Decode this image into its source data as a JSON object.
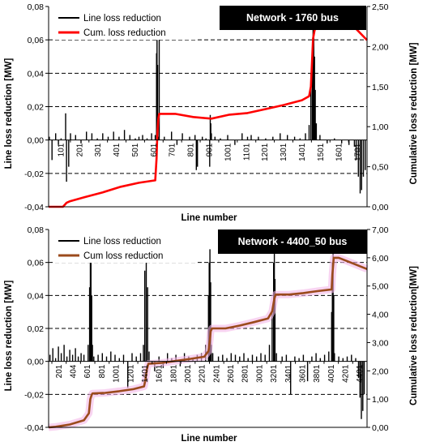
{
  "chart_data": [
    {
      "type": "line",
      "annotation": "Network - 1760 bus",
      "xlabel": "Line number",
      "ylabel": "Line loss reduction [MW]",
      "y2label": "Cumulative loss reduction [MW]",
      "xlim": [
        1,
        1760
      ],
      "ylim": [
        -0.04,
        0.08
      ],
      "y2lim": [
        0,
        2.5
      ],
      "yticks": [
        "0,08",
        "0,06",
        "0,04",
        "0,02",
        "0,00",
        "-0,02",
        "-0,04"
      ],
      "y2ticks": [
        "2,50",
        "2,00",
        "1,50",
        "1,00",
        "0,50",
        "0,00"
      ],
      "xticks": [
        "101",
        "201",
        "301",
        "401",
        "501",
        "601",
        "701",
        "801",
        "901",
        "1001",
        "1101",
        "1201",
        "1301",
        "1401",
        "1501",
        "1601",
        "1701"
      ],
      "legend": {
        "placement": "top-left",
        "entries": [
          "Line loss reduction",
          "Cum. loss reduction"
        ]
      },
      "grid": true,
      "series": [
        {
          "name": "Line loss reduction",
          "color": "#000000",
          "axis": "left",
          "x": [
            5,
            20,
            40,
            55,
            70,
            95,
            100,
            112,
            122,
            150,
            180,
            210,
            240,
            270,
            300,
            330,
            360,
            390,
            420,
            450,
            480,
            500,
            520,
            545,
            570,
            590,
            597,
            600,
            603,
            607,
            612,
            640,
            680,
            710,
            740,
            780,
            810,
            817,
            820,
            823,
            850,
            870,
            891,
            894,
            897,
            900,
            920,
            950,
            990,
            1030,
            1070,
            1100,
            1120,
            1160,
            1200,
            1240,
            1280,
            1320,
            1360,
            1390,
            1420,
            1440,
            1450,
            1458,
            1462,
            1466,
            1470,
            1474,
            1480,
            1500,
            1540,
            1580,
            1620,
            1660,
            1690,
            1700,
            1712,
            1722,
            1730,
            1740,
            1750
          ],
          "values": [
            0.002,
            -0.012,
            0.004,
            -0.003,
            0.001,
            0.016,
            -0.025,
            -0.016,
            0.004,
            0.003,
            -0.002,
            0.005,
            0.004,
            0.001,
            0.004,
            0.002,
            0.005,
            0.002,
            0.006,
            0.003,
            0.001,
            0.002,
            0.003,
            0.001,
            0.004,
            0.003,
            0.052,
            0.06,
            0.045,
            0.002,
            0.06,
            0.002,
            0.005,
            -0.003,
            0.004,
            0.002,
            0.003,
            -0.018,
            -0.012,
            -0.016,
            0.002,
            0.001,
            -0.016,
            0.015,
            0.01,
            0.004,
            0.002,
            0.001,
            0.003,
            -0.003,
            0.004,
            0.002,
            0.003,
            0.002,
            0.001,
            0.002,
            0.004,
            0.003,
            0.002,
            0.001,
            0.004,
            0.009,
            0.04,
            0.055,
            0.068,
            0.066,
            0.05,
            0.03,
            0.01,
            0.003,
            -0.002,
            0.001,
            -0.002,
            -0.003,
            -0.004,
            -0.012,
            -0.022,
            -0.032,
            -0.03,
            -0.022,
            -0.018
          ]
        },
        {
          "name": "Cum. loss reduction",
          "color": "#ff0000",
          "axis": "right",
          "x": [
            1,
            80,
            100,
            120,
            200,
            300,
            400,
            500,
            590,
            597,
            600,
            603,
            607,
            612,
            700,
            800,
            900,
            1000,
            1100,
            1200,
            1300,
            1400,
            1440,
            1450,
            1458,
            1462,
            1470,
            1480,
            1500,
            1600,
            1700,
            1760
          ],
          "values": [
            0.0,
            0.0,
            0.05,
            0.07,
            0.12,
            0.18,
            0.25,
            0.3,
            0.33,
            0.6,
            0.8,
            0.95,
            1.1,
            1.16,
            1.16,
            1.12,
            1.1,
            1.15,
            1.17,
            1.22,
            1.27,
            1.33,
            1.38,
            1.5,
            1.9,
            2.1,
            2.2,
            2.25,
            2.25,
            2.25,
            2.22,
            2.08
          ]
        }
      ]
    },
    {
      "type": "line",
      "annotation": "Network - 4400_50 bus",
      "xlabel": "Line number",
      "ylabel": "Line loss reduction [MW]",
      "y2label": "Cumulative loss reduction[MW]",
      "xlim": [
        1,
        4500
      ],
      "ylim": [
        -0.04,
        0.08
      ],
      "y2lim": [
        0,
        7
      ],
      "yticks": [
        "0,08",
        "0,06",
        "0,04",
        "0,02",
        "0,00",
        "-0,02",
        "-0,04"
      ],
      "y2ticks": [
        "7,00",
        "6,00",
        "5,00",
        "4,00",
        "3,00",
        "2,00",
        "1,00",
        "0,00"
      ],
      "xticks": [
        "201",
        "404",
        "601",
        "801",
        "1001",
        "1201",
        "1401",
        "1601",
        "1801",
        "2001",
        "2201",
        "2401",
        "2601",
        "2801",
        "3001",
        "3201",
        "3401",
        "3601",
        "3801",
        "4001",
        "4201",
        "4401"
      ],
      "legend": {
        "placement": "top-left",
        "entries": [
          "Line loss reduction",
          "Cum loss reduction"
        ]
      },
      "grid": true,
      "series": [
        {
          "name": "Line loss reduction",
          "color": "#000000",
          "axis": "left",
          "x": [
            20,
            60,
            100,
            140,
            180,
            220,
            260,
            300,
            340,
            380,
            420,
            460,
            500,
            560,
            580,
            590,
            600,
            610,
            620,
            640,
            700,
            760,
            820,
            880,
            940,
            1000,
            1060,
            1120,
            1180,
            1240,
            1300,
            1340,
            1360,
            1380,
            1400,
            1420,
            1500,
            1560,
            1620,
            1680,
            1740,
            1800,
            1860,
            1920,
            1980,
            2040,
            2100,
            2160,
            2220,
            2260,
            2270,
            2280,
            2290,
            2300,
            2320,
            2400,
            2460,
            2520,
            2580,
            2640,
            2700,
            2760,
            2820,
            2880,
            2940,
            3000,
            3060,
            3120,
            3160,
            3180,
            3190,
            3200,
            3220,
            3300,
            3360,
            3420,
            3480,
            3540,
            3600,
            3660,
            3720,
            3780,
            3840,
            3900,
            3960,
            4000,
            4010,
            4020,
            4030,
            4040,
            4100,
            4160,
            4220,
            4280,
            4340,
            4380,
            4400,
            4420,
            4440,
            4460
          ],
          "values": [
            0.004,
            0.008,
            0.002,
            0.009,
            0.005,
            0.01,
            0.003,
            0.007,
            0.004,
            0.008,
            0.003,
            0.005,
            0.004,
            0.01,
            0.045,
            0.06,
            0.065,
            0.04,
            0.01,
            0.003,
            0.004,
            0.005,
            0.003,
            0.006,
            0.004,
            0.002,
            0.004,
            -0.016,
            0.005,
            0.003,
            0.005,
            0.01,
            0.055,
            0.068,
            0.045,
            0.006,
            -0.006,
            0.003,
            -0.004,
            0.005,
            0.002,
            0.004,
            -0.003,
            0.005,
            0.003,
            0.002,
            0.004,
            0.005,
            0.01,
            0.04,
            0.06,
            0.068,
            0.048,
            0.01,
            0.005,
            0.003,
            0.004,
            0.002,
            0.005,
            0.004,
            0.003,
            0.005,
            0.002,
            0.004,
            0.003,
            0.005,
            0.004,
            0.01,
            0.03,
            0.06,
            0.068,
            0.05,
            0.005,
            0.003,
            0.004,
            -0.02,
            0.003,
            0.002,
            0.004,
            -0.012,
            0.003,
            0.005,
            0.002,
            0.004,
            0.006,
            0.03,
            0.06,
            0.068,
            0.04,
            0.005,
            0.003,
            0.002,
            0.003,
            0.004,
            0.002,
            -0.01,
            -0.022,
            -0.035,
            -0.03,
            -0.02
          ]
        },
        {
          "name": "Cum loss reduction",
          "color": "#9b4a1c",
          "axis": "right",
          "x": [
            1,
            100,
            300,
            500,
            570,
            590,
            610,
            620,
            800,
            1000,
            1200,
            1350,
            1370,
            1390,
            1410,
            1600,
            1800,
            2000,
            2200,
            2260,
            2280,
            2290,
            2310,
            2500,
            2700,
            2900,
            3100,
            3160,
            3190,
            3210,
            3400,
            3600,
            3800,
            4000,
            4010,
            4030,
            4100,
            4300,
            4500
          ],
          "values": [
            0.0,
            0.02,
            0.1,
            0.25,
            0.5,
            1.0,
            1.15,
            1.2,
            1.22,
            1.28,
            1.35,
            1.45,
            1.7,
            2.05,
            2.25,
            2.28,
            2.35,
            2.42,
            2.5,
            2.7,
            3.1,
            3.4,
            3.5,
            3.5,
            3.6,
            3.72,
            3.85,
            4.1,
            4.55,
            4.7,
            4.7,
            4.75,
            4.82,
            4.88,
            5.4,
            6.0,
            6.0,
            5.8,
            5.6
          ]
        }
      ]
    }
  ]
}
